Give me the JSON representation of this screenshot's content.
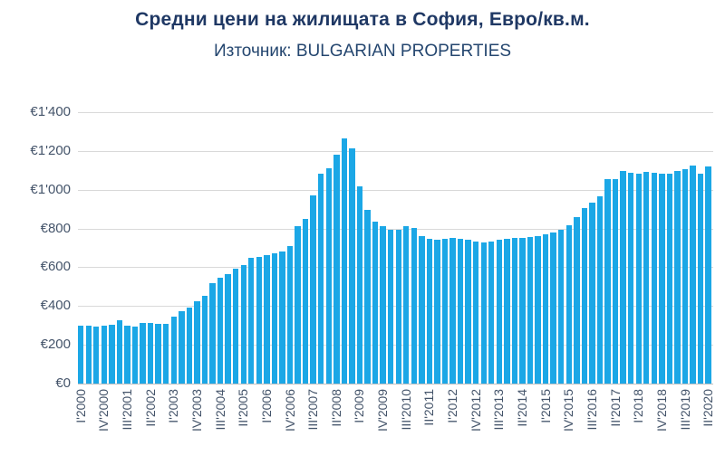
{
  "header": {
    "title": "Средни цени на жилищата в София, Евро/кв.м.",
    "subtitle": "Източник: BULGARIAN PROPERTIES"
  },
  "colors": {
    "bar": "#1BA7E6",
    "title_text": "#1F3864",
    "subtitle_text": "#24466F",
    "axis_text": "#44546A",
    "gridline": "#D9D9D9",
    "axis_line": "#BFBFBF",
    "background": "#FFFFFF"
  },
  "chart_data": {
    "type": "bar",
    "title": "Средни цени на жилищата в София, Евро/кв.м.",
    "subtitle": "Източник: BULGARIAN PROPERTIES",
    "xlabel": "",
    "ylabel": "",
    "ylim": [
      0,
      1400
    ],
    "grid": true,
    "legend": "none",
    "currency": "EUR",
    "unit": "€/кв.м.",
    "categories": [
      "I'2000",
      "II'2000",
      "III'2000",
      "IV'2000",
      "I'2001",
      "II'2001",
      "III'2001",
      "IV'2001",
      "I'2002",
      "II'2002",
      "III'2002",
      "IV'2002",
      "I'2003",
      "II'2003",
      "III'2003",
      "IV'2003",
      "I'2004",
      "II'2004",
      "III'2004",
      "IV'2004",
      "I'2005",
      "II'2005",
      "III'2005",
      "IV'2005",
      "I'2006",
      "II'2006",
      "III'2006",
      "IV'2006",
      "I'2007",
      "II'2007",
      "III'2007",
      "IV'2007",
      "I'2008",
      "II'2008",
      "III'2008",
      "IV'2008",
      "I'2009",
      "II'2009",
      "III'2009",
      "IV'2009",
      "I'2010",
      "II'2010",
      "III'2010",
      "IV'2010",
      "I'2011",
      "II'2011",
      "III'2011",
      "IV'2011",
      "I'2012",
      "II'2012",
      "III'2012",
      "IV'2012",
      "I'2013",
      "II'2013",
      "III'2013",
      "IV'2013",
      "I'2014",
      "II'2014",
      "III'2014",
      "IV'2014",
      "I'2015",
      "II'2015",
      "III'2015",
      "IV'2015",
      "I'2016",
      "II'2016",
      "III'2016",
      "IV'2016",
      "I'2017",
      "II'2017",
      "III'2017",
      "IV'2017",
      "I'2018",
      "II'2018",
      "III'2018",
      "IV'2018",
      "I'2019",
      "II'2019",
      "III'2019",
      "IV'2019",
      "I'2020",
      "II'2020"
    ],
    "values": [
      297,
      297,
      294,
      297,
      302,
      325,
      299,
      296,
      314,
      314,
      307,
      307,
      345,
      372,
      392,
      425,
      455,
      518,
      545,
      565,
      592,
      611,
      647,
      654,
      664,
      670,
      682,
      708,
      812,
      848,
      972,
      1081,
      1112,
      1181,
      1266,
      1215,
      1019,
      894,
      837,
      812,
      794,
      794,
      812,
      801,
      763,
      746,
      741,
      747,
      750,
      747,
      741,
      735,
      727,
      735,
      741,
      747,
      750,
      752,
      755,
      762,
      770,
      778,
      794,
      818,
      860,
      905,
      935,
      965,
      1057,
      1053,
      1096,
      1088,
      1084,
      1090,
      1086,
      1085,
      1085,
      1096,
      1104,
      1127,
      1085,
      1119
    ],
    "x_tick_every": 3,
    "x_tick_labels": [
      "I'2000",
      "IV'2000",
      "III'2001",
      "II'2002",
      "I'2003",
      "IV'2003",
      "III'2004",
      "II'2005",
      "I'2006",
      "IV'2006",
      "III'2007",
      "II'2008",
      "I'2009",
      "IV'2009",
      "III'2010",
      "II'2011",
      "I'2012",
      "IV'2012",
      "III'2013",
      "II'2014",
      "I'2015",
      "IV'2015",
      "III'2016",
      "II'2017",
      "I'2018",
      "IV'2018",
      "III'2019",
      "II'2020"
    ],
    "y_ticks": [
      0,
      200,
      400,
      600,
      800,
      1000,
      1200,
      1400
    ],
    "y_tick_labels": [
      "€0",
      "€200",
      "€400",
      "€600",
      "€800",
      "€1'000",
      "€1'200",
      "€1'400"
    ]
  }
}
